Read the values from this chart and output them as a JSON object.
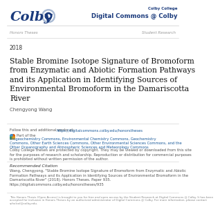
{
  "background_color": "#ffffff",
  "header_line_color": "#cccccc",
  "colby_text": "Colby",
  "colby_text_color": "#1a3a7c",
  "dc_label_small": "Colby College",
  "dc_label_large": "Digital Commons @ Colby",
  "dc_color": "#1a3a7c",
  "left_nav": "Honors Theses",
  "right_nav": "Student Research",
  "nav_color": "#999999",
  "year": "2018",
  "year_color": "#333333",
  "title": "Stable Bromine Isotope Signature of Bromoform\nfrom Enzymatic and Abiotic Formation Pathways\nand its Application in Identifying Sources of\nEnvironmental Bromoform in the Damariscotta\nRiver",
  "title_color": "#111111",
  "author": "Chengyong Wang",
  "author_color": "#555555",
  "follow_text": "Follow this and additional works at: ",
  "follow_url": "https://digitalcommons.colby.edu/honorstheses",
  "follow_color": "#555555",
  "follow_url_color": "#1a5a9a",
  "part_of_label": "Part of the ",
  "part_of_links": "Biogeochemistry Commons, Environmental Chemistry Commons, Geochemistry\nCommons, Other Earth Sciences Commons, Other Environmental Sciences Commons, and the\nOther Oceanography and Atmospheric Sciences and Meteorology Commons",
  "part_of_link_color": "#1a5a9a",
  "part_of_plain_color": "#555555",
  "copyright_text": "Colby College theses are protected by copyright. They may be viewed or downloaded from this site\nfor the purposes of research and scholarship. Reproduction or distribution for commercial purposes\nis prohibited without written permission of the author.",
  "copyright_color": "#555555",
  "rec_citation_label": "Recommended Citation",
  "rec_citation_label_color": "#333333",
  "rec_citation_text": "Wang, Chengyong, \"Stable Bromine Isotope Signature of Bromoform from Enzymatic and Abiotic\nFormation Pathways and its Application in Identifying Sources of Environmental Bromoform in the\nDamariscotta River\" (2018). Honors Theses. Paper 935.\nhttps://digitalcommons.colby.edu/honorstheses/935",
  "rec_citation_color": "#555555",
  "footer_text": "This Honors Thesis (Open Access) is brought to you for free and open access by the Student Research at Digital Commons @ Colby. It has been\naccepted for inclusion in Honors Theses by an authorized administrator of Digital Commons @ Colby. For more information, please contact\nscholcol@colby.edu.",
  "footer_color": "#888888",
  "circle_outer_color": "#aabbd4",
  "circle_mid_color": "#ffffff",
  "circle_inner_color": "#1a3a7c",
  "circle_center_color": "#ffffff"
}
